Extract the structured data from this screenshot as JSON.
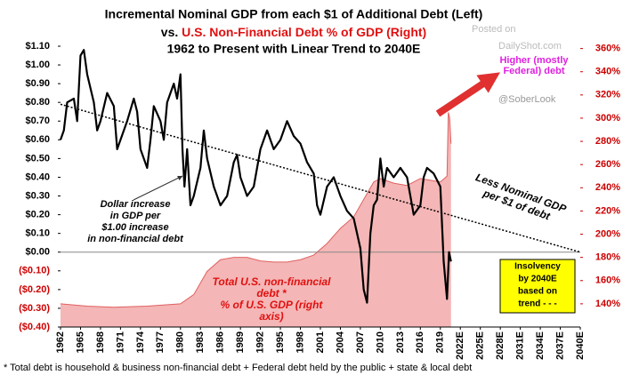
{
  "chart_data": {
    "type": "line",
    "title": [
      "Incremental Nominal GDP from each $1 of Additional Debt (Left)",
      "1962 to Present with Linear Trend to 2040E"
    ],
    "subtitle": {
      "prefix": "vs.",
      "red": "U.S. Non-Financial Debt % of GDP (Right)"
    },
    "watermarks": [
      "Posted on",
      "DailyShot.com",
      "@SoberLook"
    ],
    "xlim": [
      1962,
      2040
    ],
    "xticks": [
      1962,
      1965,
      1968,
      1971,
      1974,
      1977,
      1980,
      1983,
      1986,
      1989,
      1992,
      1995,
      1998,
      2001,
      2004,
      2007,
      2010,
      2013,
      2016,
      2019,
      {
        "value": 2022,
        "label": "2022E"
      },
      {
        "value": 2025,
        "label": "2025E"
      },
      {
        "value": 2028,
        "label": "2028E"
      },
      {
        "value": 2031,
        "label": "2031E"
      },
      {
        "value": 2034,
        "label": "2034E"
      },
      {
        "value": 2037,
        "label": "2037E"
      },
      {
        "value": 2040,
        "label": "2040E"
      }
    ],
    "ylim": [
      -0.4,
      1.1
    ],
    "yticks": [
      {
        "value": 1.1,
        "label": "$1.10"
      },
      {
        "value": 1.0,
        "label": "$1.00"
      },
      {
        "value": 0.9,
        "label": "$0.90"
      },
      {
        "value": 0.8,
        "label": "$0.80"
      },
      {
        "value": 0.7,
        "label": "$0.70"
      },
      {
        "value": 0.6,
        "label": "$0.60"
      },
      {
        "value": 0.5,
        "label": "$0.50"
      },
      {
        "value": 0.4,
        "label": "$0.40"
      },
      {
        "value": 0.3,
        "label": "$0.30"
      },
      {
        "value": 0.2,
        "label": "$0.20"
      },
      {
        "value": 0.1,
        "label": "$0.10"
      },
      {
        "value": 0,
        "label": "$0.00"
      },
      {
        "value": -0.1,
        "label": "($0.10)"
      },
      {
        "value": -0.2,
        "label": "($0.20)"
      },
      {
        "value": -0.3,
        "label": "($0.30)"
      },
      {
        "value": -0.4,
        "label": "($0.40)"
      }
    ],
    "negative_tick_color": "#cc0000",
    "y2lim": [
      120,
      362
    ],
    "y2ticks": [
      {
        "value": 360,
        "label": "360%"
      },
      {
        "value": 340,
        "label": "340%"
      },
      {
        "value": 320,
        "label": "320%"
      },
      {
        "value": 300,
        "label": "300%"
      },
      {
        "value": 280,
        "label": "280%"
      },
      {
        "value": 260,
        "label": "260%"
      },
      {
        "value": 240,
        "label": "240%"
      },
      {
        "value": 220,
        "label": "220%"
      },
      {
        "value": 200,
        "label": "200%"
      },
      {
        "value": 180,
        "label": "180%"
      },
      {
        "value": 160,
        "label": "160%"
      },
      {
        "value": 140,
        "label": "140%"
      }
    ],
    "y2_color": "#cc0000",
    "series": [
      {
        "name": "Total U.S. non-financial debt % of U.S. GDP",
        "type": "area",
        "axis": "y2",
        "color": "#f4b6b6",
        "line_color": "#e06060",
        "x": [
          1962,
          1966,
          1970,
          1975,
          1980,
          1982,
          1984,
          1986,
          1988,
          1990,
          1992,
          1994,
          1996,
          1998,
          2000,
          2002,
          2004,
          2006,
          2008,
          2009,
          2010,
          2012,
          2014,
          2016,
          2018,
          2019,
          2020,
          2020.2,
          2020.4,
          2020.6
        ],
        "values": [
          140,
          138,
          137,
          138,
          140,
          148,
          168,
          178,
          180,
          180,
          177,
          176,
          176,
          178,
          182,
          192,
          205,
          215,
          235,
          245,
          248,
          244,
          242,
          248,
          246,
          245,
          250,
          305,
          300,
          278
        ]
      },
      {
        "name": "Incremental Nominal GDP per $1 of debt",
        "type": "line",
        "color": "#000000",
        "x": [
          1962,
          1962.5,
          1963,
          1964,
          1964.5,
          1965,
          1965.5,
          1966,
          1967,
          1967.5,
          1968,
          1969,
          1970,
          1970.5,
          1971,
          1972,
          1973,
          1973.5,
          1974,
          1975,
          1975.5,
          1976,
          1977,
          1977.5,
          1978,
          1979,
          1979.5,
          1980,
          1980.3,
          1980.6,
          1981,
          1981.5,
          1982,
          1983,
          1983.5,
          1984,
          1985,
          1986,
          1987,
          1988,
          1988.5,
          1989,
          1990,
          1991,
          1992,
          1993,
          1994,
          1995,
          1996,
          1997,
          1998,
          1999,
          2000,
          2000.5,
          2001,
          2002,
          2003,
          2004,
          2005,
          2006,
          2007,
          2007.5,
          2008,
          2008.5,
          2009,
          2009.5,
          2010,
          2010.5,
          2011,
          2012,
          2013,
          2014,
          2015,
          2016,
          2016.5,
          2017,
          2018,
          2019,
          2019.5,
          2020,
          2020.3,
          2020.6
        ],
        "values": [
          0.6,
          0.65,
          0.8,
          0.82,
          0.7,
          1.05,
          1.08,
          0.95,
          0.8,
          0.65,
          0.7,
          0.85,
          0.78,
          0.55,
          0.6,
          0.7,
          0.82,
          0.75,
          0.55,
          0.45,
          0.6,
          0.78,
          0.7,
          0.6,
          0.8,
          0.9,
          0.82,
          0.95,
          0.55,
          0.35,
          0.55,
          0.25,
          0.3,
          0.45,
          0.65,
          0.5,
          0.35,
          0.25,
          0.3,
          0.48,
          0.52,
          0.4,
          0.3,
          0.35,
          0.55,
          0.65,
          0.55,
          0.6,
          0.7,
          0.62,
          0.58,
          0.48,
          0.42,
          0.25,
          0.2,
          0.35,
          0.4,
          0.3,
          0.22,
          0.18,
          0.02,
          -0.2,
          -0.27,
          0.1,
          0.25,
          0.28,
          0.5,
          0.35,
          0.45,
          0.4,
          0.45,
          0.4,
          0.2,
          0.25,
          0.4,
          0.45,
          0.42,
          0.35,
          -0.05,
          -0.25,
          0,
          -0.05
        ]
      },
      {
        "name": "Linear trend",
        "type": "trend",
        "color": "#000000",
        "x": [
          1962,
          2040
        ],
        "values": [
          0.79,
          0
        ]
      }
    ],
    "annotations": {
      "dollar": [
        "Dollar increase",
        "in GDP per",
        "$1.00 increase",
        "in non-financial debt"
      ],
      "debt": [
        "Total U.S. non-financial",
        "debt *",
        "% of  U.S. GDP (right",
        "axis)"
      ],
      "less": [
        "Less Nominal GDP",
        "per $1 of debt"
      ],
      "higher": [
        "Higher (mostly",
        "Federal) debt"
      ],
      "insolvency": [
        "Insolvency",
        "by 2040E",
        "based on",
        "trend - - -"
      ]
    },
    "footnote": "* Total debt is household & business non-financial debt + Federal debt held by the public + state & local debt"
  }
}
